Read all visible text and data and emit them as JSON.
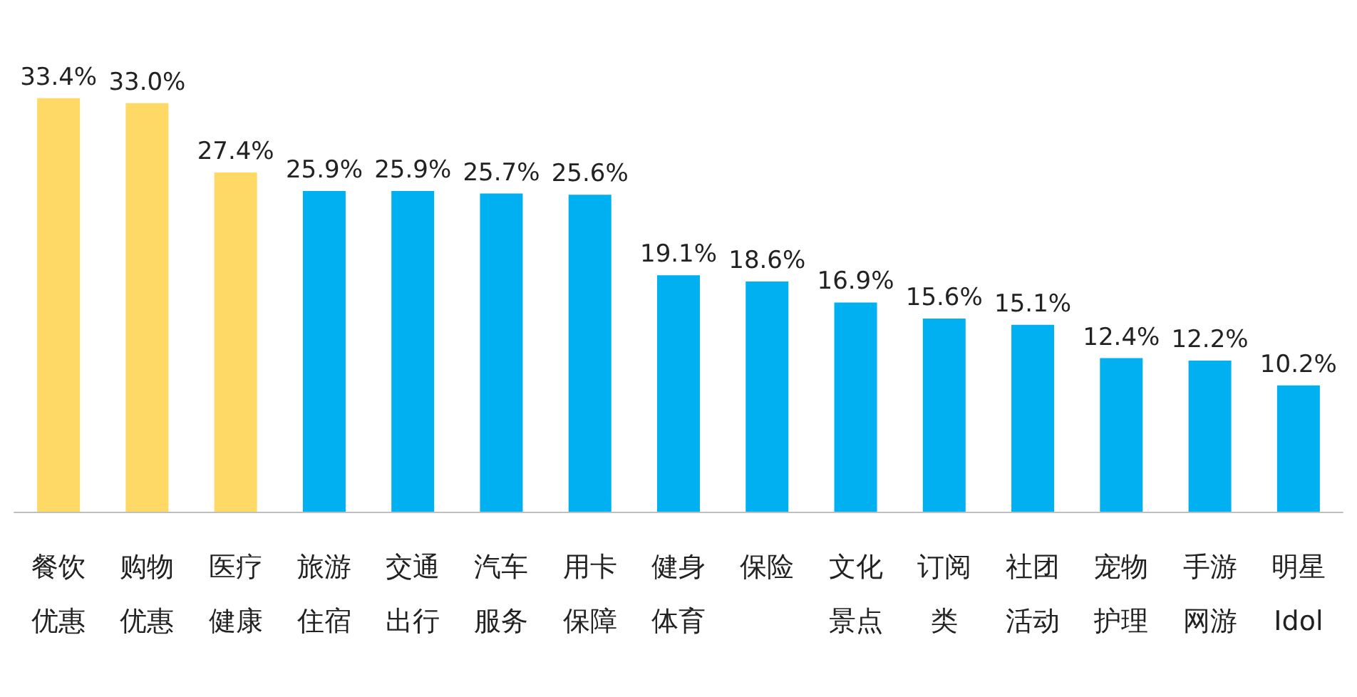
{
  "chart_data": {
    "type": "bar",
    "categories": [
      "餐饮优惠",
      "购物优惠",
      "医疗健康",
      "旅游住宿",
      "交通出行",
      "汽车服务",
      "用卡保障",
      "健身体育",
      "保险",
      "文化景点",
      "订阅类",
      "社团活动",
      "宠物护理",
      "手游网游",
      "明星Idol"
    ],
    "values": [
      33.4,
      33.0,
      27.4,
      25.9,
      25.9,
      25.7,
      25.6,
      19.1,
      18.6,
      16.9,
      15.6,
      15.1,
      12.4,
      12.2,
      10.2
    ],
    "value_labels": [
      "33.4%",
      "33.0%",
      "27.4%",
      "25.9%",
      "25.9%",
      "25.7%",
      "25.6%",
      "19.1%",
      "18.6%",
      "16.9%",
      "15.6%",
      "15.1%",
      "12.4%",
      "12.2%",
      "10.2%"
    ],
    "colors": [
      "#ffd966",
      "#ffd966",
      "#ffd966",
      "#00b0f0",
      "#00b0f0",
      "#00b0f0",
      "#00b0f0",
      "#00b0f0",
      "#00b0f0",
      "#00b0f0",
      "#00b0f0",
      "#00b0f0",
      "#00b0f0",
      "#00b0f0",
      "#00b0f0"
    ],
    "grid": false
  }
}
